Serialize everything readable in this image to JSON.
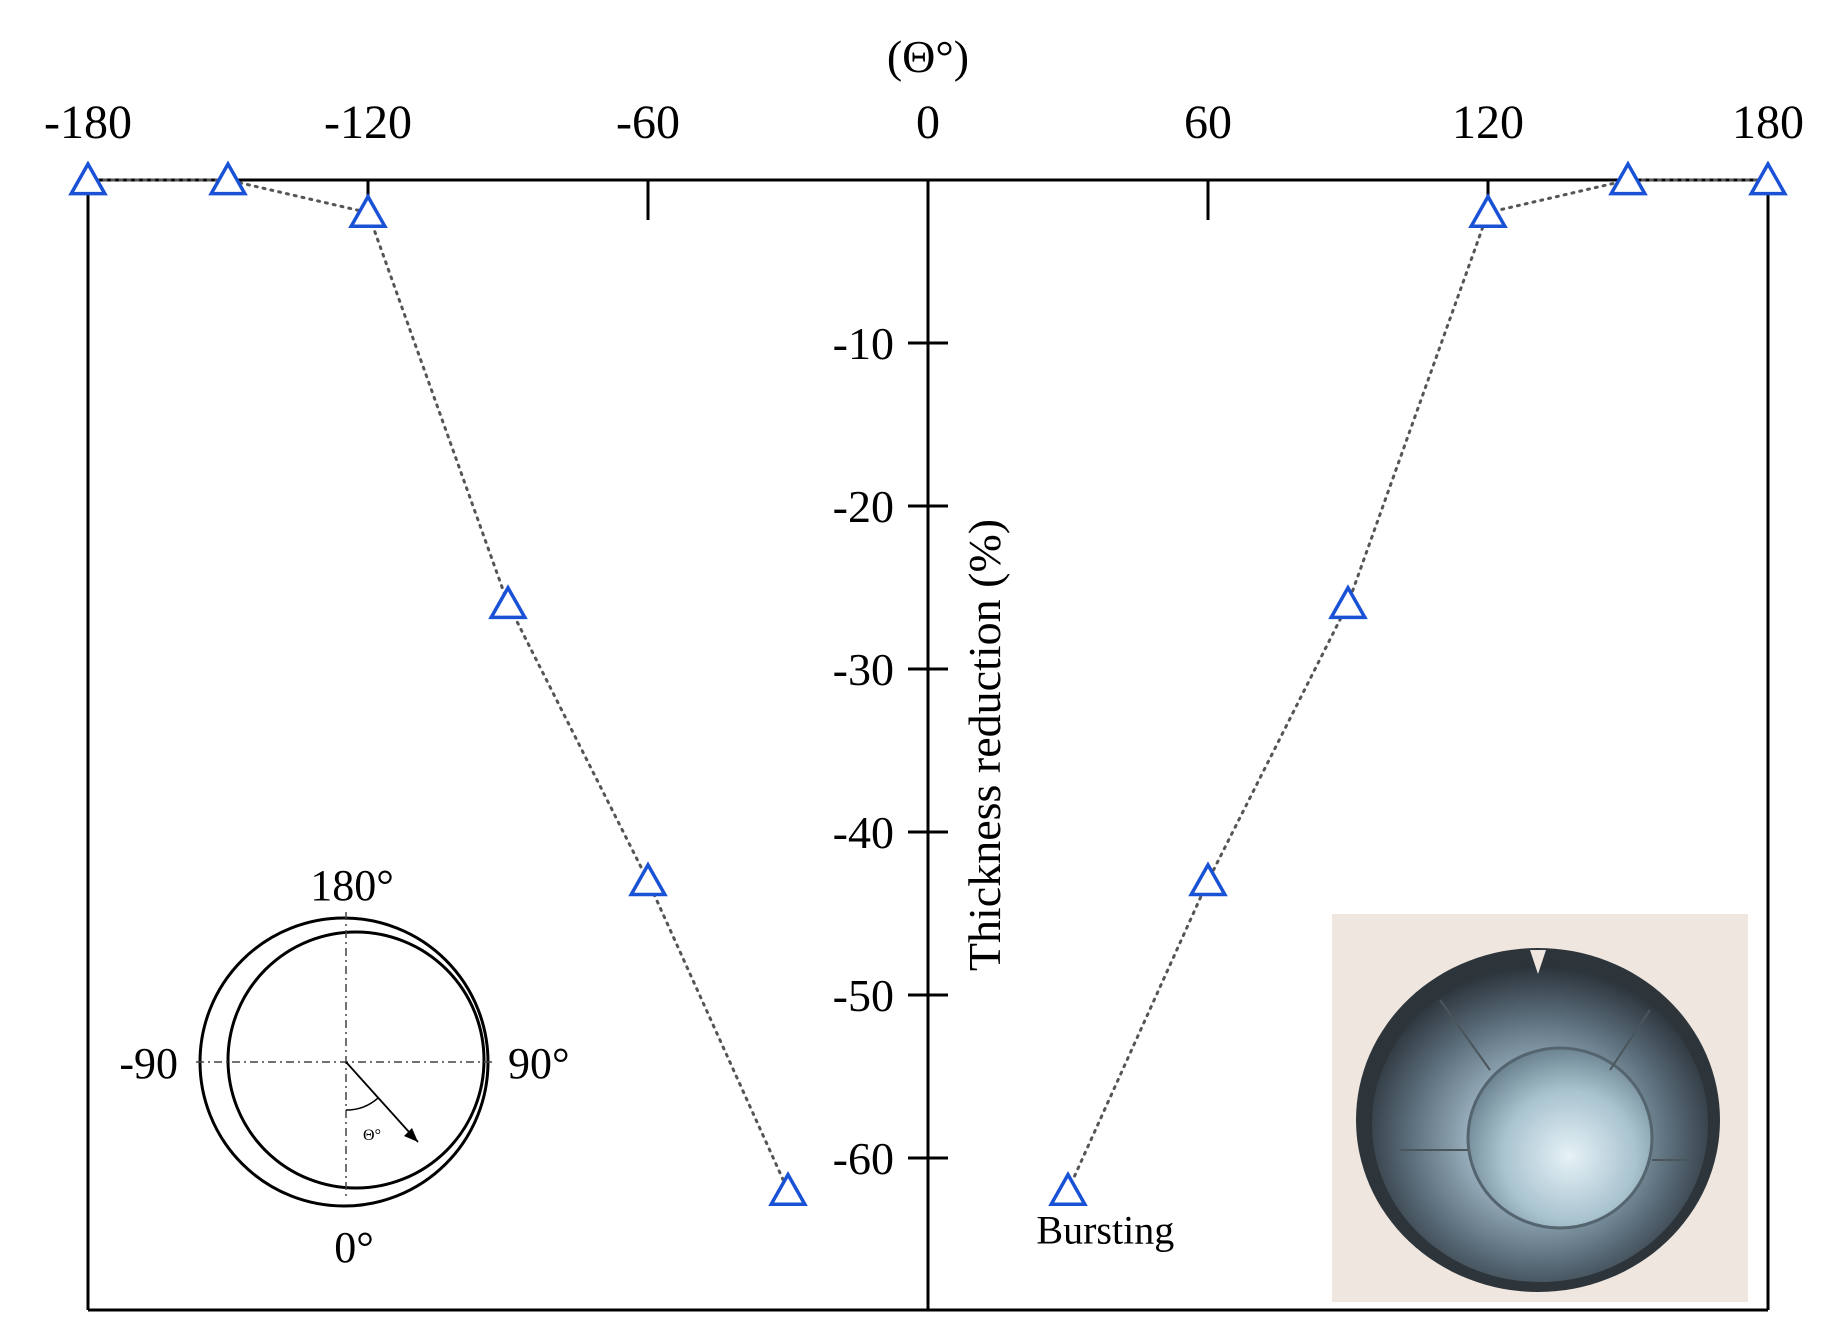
{
  "chart_data": {
    "type": "scatter",
    "xlabel": "(Θ°)",
    "ylabel": "Thickness reduction (%)",
    "xlim": [
      -180,
      180
    ],
    "ylim": [
      -70,
      0
    ],
    "x_ticks": [
      -180,
      -120,
      -60,
      0,
      60,
      120,
      180
    ],
    "y_ticks": [
      -10,
      -20,
      -30,
      -40,
      -50,
      -60
    ],
    "x_tick_labels": [
      "-180",
      "-120",
      "-60",
      "0",
      "60",
      "120",
      "180"
    ],
    "y_tick_labels": [
      "-10",
      "-20",
      "-30",
      "-40",
      "-50",
      "-60"
    ],
    "x_axis_position": "top",
    "grid": false,
    "marker": "open-triangle",
    "marker_color": "#1a52d6",
    "line_style": "dotted",
    "line_color": "#555555",
    "series": [
      {
        "x": [
          -180,
          -150,
          -120,
          -90,
          -60,
          -30
        ],
        "y": [
          0,
          0,
          -2,
          -26,
          -43,
          -62
        ]
      },
      {
        "x": [
          30,
          60,
          90,
          120,
          150,
          180
        ],
        "y": [
          -62,
          -43,
          -26,
          -2,
          0,
          0
        ]
      }
    ],
    "annotations": [
      {
        "text": "Bursting",
        "x": 38,
        "y": -65
      }
    ],
    "inset_diagram": {
      "labels": [
        "180°",
        "-90",
        "90°",
        "0°",
        "Θ°"
      ]
    },
    "inset_photo": {
      "description_visible": false
    }
  }
}
